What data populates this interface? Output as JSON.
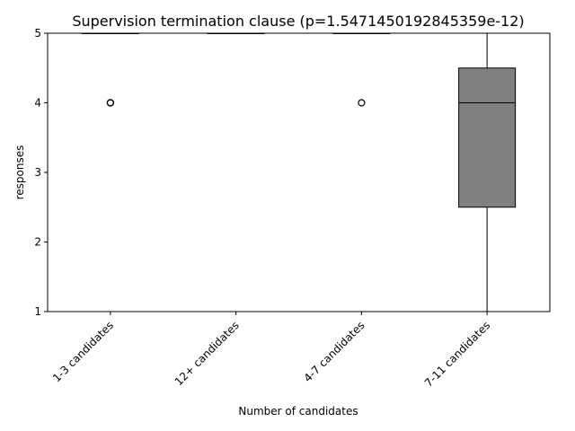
{
  "chart_data": {
    "type": "box",
    "title": "Supervision termination clause (p=1.5471450192845359e-12)",
    "xlabel": "Number of candidates",
    "ylabel": "responses",
    "categories": [
      "1-3 candidates",
      "12+ candidates",
      "4-7 candidates",
      "7-11 candidates"
    ],
    "ylim": [
      1,
      5
    ],
    "yticks": [
      "1",
      "2",
      "3",
      "4",
      "5"
    ],
    "box_color": "#808080",
    "boxes": [
      {
        "category": "1-3 candidates",
        "whisker_low": 5,
        "q1": 5,
        "median": 5,
        "q3": 5,
        "whisker_high": 5,
        "outliers": [
          4,
          4,
          4
        ]
      },
      {
        "category": "12+ candidates",
        "whisker_low": 5,
        "q1": 5,
        "median": 5,
        "q3": 5,
        "whisker_high": 5,
        "outliers": []
      },
      {
        "category": "4-7 candidates",
        "whisker_low": 5,
        "q1": 5,
        "median": 5,
        "q3": 5,
        "whisker_high": 5,
        "outliers": [
          4
        ]
      },
      {
        "category": "7-11 candidates",
        "whisker_low": 1,
        "q1": 2.5,
        "median": 4,
        "q3": 4.5,
        "whisker_high": 5,
        "outliers": []
      }
    ]
  }
}
